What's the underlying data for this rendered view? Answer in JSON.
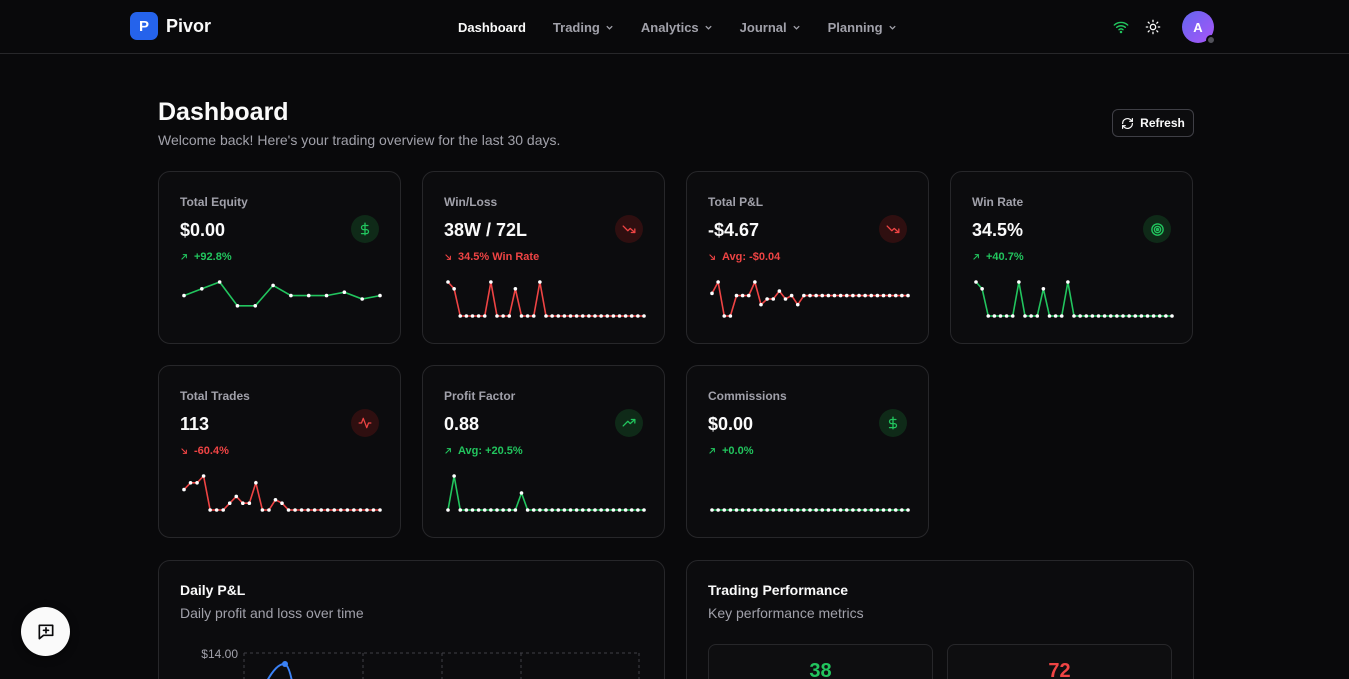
{
  "app": {
    "logo_letter": "P",
    "name": "Pivor"
  },
  "nav": [
    {
      "label": "Dashboard",
      "active": true,
      "dropdown": false
    },
    {
      "label": "Trading",
      "active": false,
      "dropdown": true
    },
    {
      "label": "Analytics",
      "active": false,
      "dropdown": true
    },
    {
      "label": "Journal",
      "active": false,
      "dropdown": true
    },
    {
      "label": "Planning",
      "active": false,
      "dropdown": true
    }
  ],
  "header_icons": {
    "connection": "wifi-icon",
    "theme": "sun-icon"
  },
  "user": {
    "avatar_letter": "A"
  },
  "page": {
    "title": "Dashboard",
    "subtitle": "Welcome back! Here's your trading overview for the last 30 days.",
    "refresh_label": "Refresh"
  },
  "colors": {
    "green": "#22c55e",
    "red": "#ef4444",
    "accent": "#2563eb"
  },
  "cards": [
    {
      "label": "Total Equity",
      "value": "$0.00",
      "change": "+92.8%",
      "trend": "up",
      "icon": "dollar-icon",
      "spark": [
        3,
        4,
        5,
        1.5,
        1.5,
        4.5,
        3,
        3,
        3,
        3.5,
        2.5,
        3
      ]
    },
    {
      "label": "Win/Loss",
      "value": "38W / 72L",
      "change": "34.5% Win Rate",
      "trend": "down",
      "icon": "trending-down-icon",
      "spark": [
        5,
        4,
        0,
        0,
        0,
        0,
        0,
        5,
        0,
        0,
        0,
        4,
        0,
        0,
        0,
        5,
        0,
        0,
        0,
        0,
        0,
        0,
        0,
        0,
        0,
        0,
        0,
        0,
        0,
        0,
        0,
        0,
        0
      ]
    },
    {
      "label": "Total P&L",
      "value": "-$4.67",
      "change": "Avg: -$0.04",
      "trend": "down",
      "icon": "trending-down-icon",
      "spark": [
        2,
        3,
        0,
        0,
        1.8,
        1.8,
        1.8,
        3,
        1,
        1.5,
        1.5,
        2.2,
        1.5,
        1.8,
        1,
        1.8,
        1.8,
        1.8,
        1.8,
        1.8,
        1.8,
        1.8,
        1.8,
        1.8,
        1.8,
        1.8,
        1.8,
        1.8,
        1.8,
        1.8,
        1.8,
        1.8,
        1.8
      ]
    },
    {
      "label": "Win Rate",
      "value": "34.5%",
      "change": "+40.7%",
      "trend": "up",
      "icon": "target-icon",
      "spark": [
        5,
        4,
        0,
        0,
        0,
        0,
        0,
        5,
        0,
        0,
        0,
        4,
        0,
        0,
        0,
        5,
        0,
        0,
        0,
        0,
        0,
        0,
        0,
        0,
        0,
        0,
        0,
        0,
        0,
        0,
        0,
        0,
        0
      ]
    },
    {
      "label": "Total Trades",
      "value": "113",
      "change": "-60.4%",
      "trend": "down",
      "icon": "activity-icon",
      "spark": [
        3,
        4,
        4,
        5,
        0,
        0,
        0,
        1,
        2,
        1,
        1,
        4,
        0,
        0,
        1.5,
        1,
        0,
        0,
        0,
        0,
        0,
        0,
        0,
        0,
        0,
        0,
        0,
        0,
        0,
        0,
        0
      ]
    },
    {
      "label": "Profit Factor",
      "value": "0.88",
      "change": "Avg: +20.5%",
      "trend": "up",
      "icon": "trending-up-icon",
      "spark": [
        0,
        5,
        0,
        0,
        0,
        0,
        0,
        0,
        0,
        0,
        0,
        0,
        2.5,
        0,
        0,
        0,
        0,
        0,
        0,
        0,
        0,
        0,
        0,
        0,
        0,
        0,
        0,
        0,
        0,
        0,
        0,
        0,
        0
      ]
    },
    {
      "label": "Commissions",
      "value": "$0.00",
      "change": "+0.0%",
      "trend": "up",
      "icon": "dollar-icon",
      "spark": [
        0,
        0,
        0,
        0,
        0,
        0,
        0,
        0,
        0,
        0,
        0,
        0,
        0,
        0,
        0,
        0,
        0,
        0,
        0,
        0,
        0,
        0,
        0,
        0,
        0,
        0,
        0,
        0,
        0,
        0,
        0,
        0,
        0
      ]
    }
  ],
  "daily_pnl": {
    "title": "Daily P&L",
    "subtitle": "Daily profit and loss over time",
    "y_tick_top": "$14.00"
  },
  "performance": {
    "title": "Trading Performance",
    "subtitle": "Key performance metrics",
    "wins": "38",
    "losses": "72"
  },
  "fab_icon": "message-plus-icon"
}
